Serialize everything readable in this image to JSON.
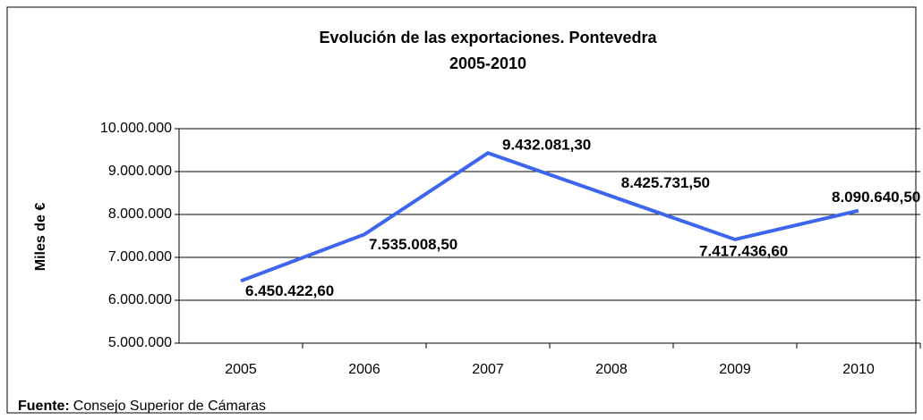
{
  "chart_data": {
    "type": "line",
    "title": "Evolución de las exportaciones. Pontevedra",
    "subtitle": "2005-2010",
    "y_label": "Miles de €",
    "source_label": "Fuente:",
    "source": "Consejo Superior de Cámaras",
    "categories": [
      "2005",
      "2006",
      "2007",
      "2008",
      "2009",
      "2010"
    ],
    "series": [
      {
        "name": "Exportaciones",
        "color": "#3d66ee",
        "values": [
          6450422.6,
          7535008.5,
          9432081.3,
          8425731.5,
          7417436.6,
          8090640.5
        ],
        "value_labels": [
          "6.450.422,60",
          "7.535.008,50",
          "9.432.081,30",
          "8.425.731,50",
          "7.417.436,60",
          "8.090.640,50"
        ]
      }
    ],
    "ylim": [
      5000000,
      10000000
    ],
    "yticks": [
      {
        "value": 5000000,
        "label": "5.000.000"
      },
      {
        "value": 6000000,
        "label": "6.000.000"
      },
      {
        "value": 7000000,
        "label": "7.000.000"
      },
      {
        "value": 8000000,
        "label": "8.000.000"
      },
      {
        "value": 9000000,
        "label": "9.000.000"
      },
      {
        "value": 10000000,
        "label": "10.000.000"
      }
    ],
    "grid": true
  }
}
